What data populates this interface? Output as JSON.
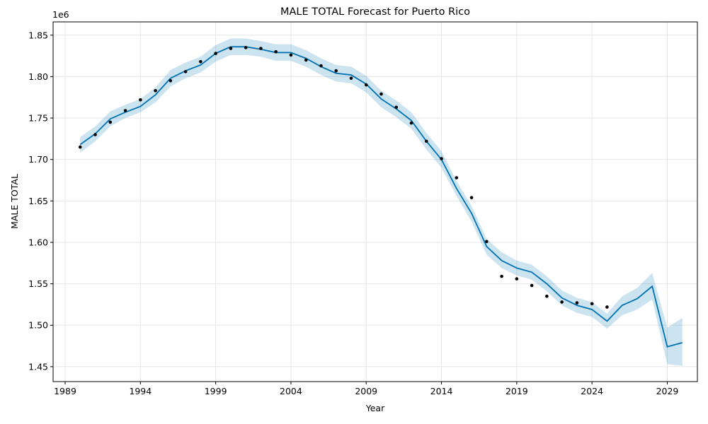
{
  "chart_data": {
    "type": "line",
    "title": "MALE TOTAL Forecast for Puerto Rico",
    "xlabel": "Year",
    "ylabel": "MALE TOTAL",
    "y_offset_label": "1e6",
    "xlim": [
      1988.2,
      2031.0
    ],
    "ylim": [
      1.432,
      1.866
    ],
    "grid": true,
    "x_ticks": [
      1989,
      1994,
      1999,
      2004,
      2009,
      2014,
      2019,
      2024,
      2029
    ],
    "y_ticks": [
      1.45,
      1.5,
      1.55,
      1.6,
      1.65,
      1.7,
      1.75,
      1.8,
      1.85
    ],
    "y_tick_labels": [
      "1.45",
      "1.50",
      "1.55",
      "1.60",
      "1.65",
      "1.70",
      "1.75",
      "1.80",
      "1.85"
    ],
    "colors": {
      "forecast": "#0072B2",
      "interval": "#0072B2",
      "actual": "#000000",
      "grid": "#e6e6e6"
    },
    "actual": {
      "x": [
        1990,
        1991,
        1992,
        1993,
        1994,
        1995,
        1996,
        1997,
        1998,
        1999,
        2000,
        2001,
        2002,
        2003,
        2004,
        2005,
        2006,
        2007,
        2008,
        2009,
        2010,
        2011,
        2012,
        2013,
        2014,
        2015,
        2016,
        2017,
        2018,
        2019,
        2020,
        2021,
        2022,
        2023,
        2024,
        2025
      ],
      "y": [
        1.715,
        1.73,
        1.745,
        1.759,
        1.772,
        1.783,
        1.795,
        1.806,
        1.818,
        1.828,
        1.834,
        1.835,
        1.834,
        1.83,
        1.826,
        1.82,
        1.813,
        1.807,
        1.798,
        1.79,
        1.779,
        1.763,
        1.744,
        1.722,
        1.701,
        1.678,
        1.654,
        1.601,
        1.559,
        1.556,
        1.548,
        1.535,
        1.528,
        1.527,
        1.526,
        1.522
      ]
    },
    "forecast": {
      "x": [
        1990,
        1991,
        1992,
        1993,
        1994,
        1995,
        1996,
        1997,
        1998,
        1999,
        2000,
        2001,
        2002,
        2003,
        2004,
        2005,
        2006,
        2007,
        2008,
        2009,
        2010,
        2011,
        2012,
        2013,
        2014,
        2015,
        2016,
        2017,
        2018,
        2019,
        2020,
        2021,
        2022,
        2023,
        2024,
        2025,
        2026,
        2027,
        2028,
        2029,
        2030
      ],
      "yhat": [
        1.718,
        1.731,
        1.749,
        1.757,
        1.764,
        1.778,
        1.798,
        1.807,
        1.814,
        1.828,
        1.836,
        1.836,
        1.833,
        1.829,
        1.829,
        1.822,
        1.812,
        1.804,
        1.802,
        1.791,
        1.773,
        1.761,
        1.747,
        1.722,
        1.7,
        1.665,
        1.635,
        1.595,
        1.578,
        1.569,
        1.564,
        1.55,
        1.533,
        1.524,
        1.519,
        1.505,
        1.524,
        1.532,
        1.547,
        1.474,
        1.479
      ],
      "lower": [
        1.708,
        1.722,
        1.74,
        1.75,
        1.757,
        1.769,
        1.788,
        1.798,
        1.805,
        1.818,
        1.826,
        1.826,
        1.824,
        1.819,
        1.819,
        1.812,
        1.802,
        1.794,
        1.792,
        1.781,
        1.763,
        1.751,
        1.737,
        1.712,
        1.69,
        1.656,
        1.625,
        1.585,
        1.569,
        1.56,
        1.555,
        1.541,
        1.524,
        1.515,
        1.51,
        1.496,
        1.512,
        1.519,
        1.531,
        1.453,
        1.451
      ],
      "upper": [
        1.727,
        1.74,
        1.758,
        1.766,
        1.773,
        1.787,
        1.808,
        1.817,
        1.824,
        1.838,
        1.846,
        1.846,
        1.843,
        1.839,
        1.839,
        1.832,
        1.822,
        1.814,
        1.812,
        1.801,
        1.783,
        1.771,
        1.757,
        1.732,
        1.71,
        1.674,
        1.644,
        1.604,
        1.588,
        1.578,
        1.573,
        1.559,
        1.542,
        1.533,
        1.528,
        1.514,
        1.535,
        1.545,
        1.563,
        1.497,
        1.509
      ]
    }
  }
}
